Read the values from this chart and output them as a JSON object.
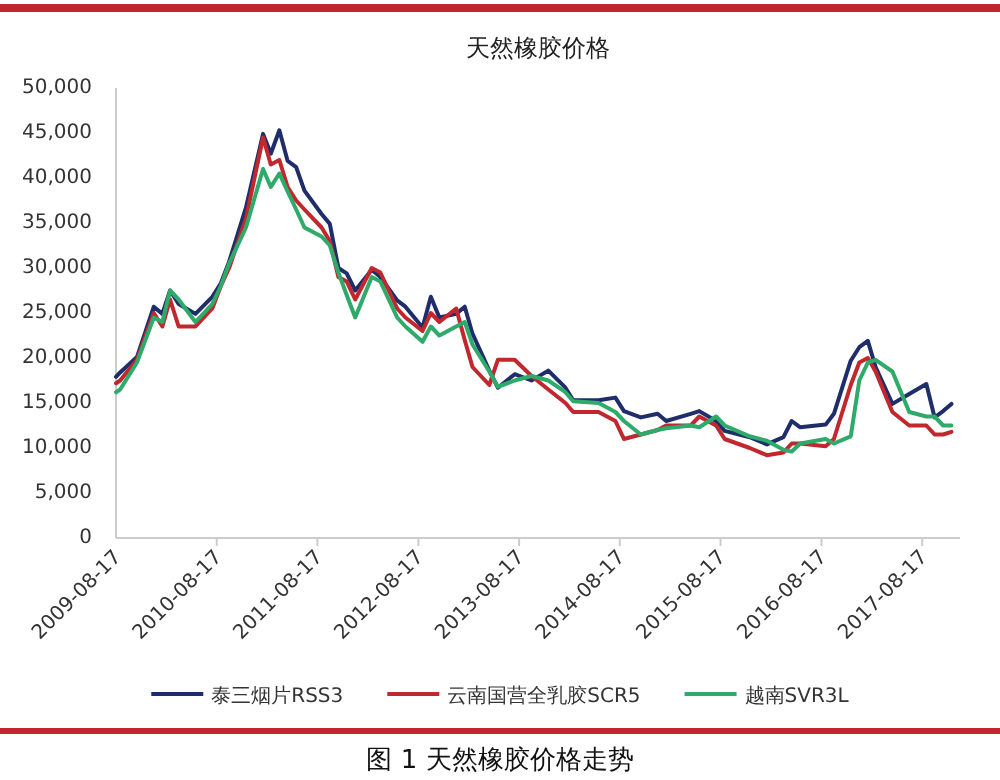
{
  "chart_data": {
    "type": "line",
    "title": "天然橡胶价格",
    "x": [
      "2009-08-17",
      "2009-09",
      "2009-11",
      "2010-01",
      "2010-02",
      "2010-03",
      "2010-04",
      "2010-06",
      "2010-08",
      "2010-09",
      "2010-10",
      "2010-12",
      "2011-02",
      "2011-03",
      "2011-04",
      "2011-05",
      "2011-06",
      "2011-07",
      "2011-09",
      "2011-10",
      "2011-11",
      "2011-12",
      "2012-01",
      "2012-03",
      "2012-04",
      "2012-06",
      "2012-07",
      "2012-09",
      "2012-10",
      "2012-11",
      "2013-01",
      "2013-02",
      "2013-03",
      "2013-05",
      "2013-06",
      "2013-08",
      "2013-10",
      "2013-12",
      "2014-02",
      "2014-03",
      "2014-06",
      "2014-08",
      "2014-09",
      "2014-11",
      "2015-01",
      "2015-02",
      "2015-05",
      "2015-06",
      "2015-08",
      "2015-09",
      "2015-12",
      "2016-02",
      "2016-04",
      "2016-05",
      "2016-06",
      "2016-09",
      "2016-10",
      "2016-12",
      "2017-01",
      "2017-02",
      "2017-03",
      "2017-05",
      "2017-07",
      "2017-09",
      "2017-10",
      "2017-11",
      "2017-12"
    ],
    "series": [
      {
        "name": "泰三烟片RSS3",
        "color": "#1f2d6b",
        "values": [
          17900,
          18400,
          20100,
          25700,
          24900,
          27500,
          26000,
          24900,
          26800,
          28300,
          30700,
          36700,
          44900,
          42700,
          45300,
          41900,
          41200,
          38600,
          36000,
          34900,
          30000,
          29400,
          27500,
          29800,
          29000,
          26400,
          25700,
          23400,
          26800,
          24500,
          24900,
          25700,
          22700,
          18600,
          16700,
          18200,
          17500,
          18600,
          16700,
          15300,
          15300,
          15600,
          14100,
          13400,
          13800,
          13000,
          13800,
          14100,
          13000,
          11900,
          11200,
          10400,
          11200,
          13000,
          12300,
          12600,
          13800,
          19700,
          21200,
          21900,
          19000,
          14900,
          16000,
          17100,
          13400,
          14100,
          14900
        ]
      },
      {
        "name": "云南国营全乳胶SCR5",
        "color": "#c0282d",
        "values": [
          17200,
          17500,
          19800,
          25000,
          23500,
          26500,
          23500,
          23500,
          25500,
          28000,
          30000,
          35500,
          44500,
          41500,
          42000,
          39000,
          37500,
          36500,
          34500,
          33000,
          29000,
          28500,
          26500,
          30000,
          29500,
          25500,
          24500,
          23000,
          25000,
          24000,
          25500,
          22000,
          19000,
          17000,
          19800,
          19800,
          18000,
          16500,
          15000,
          14000,
          14000,
          13000,
          11000,
          11500,
          12000,
          12500,
          12500,
          13500,
          12500,
          11000,
          10000,
          9200,
          9500,
          10500,
          10500,
          10200,
          11000,
          17000,
          19500,
          20000,
          18500,
          14000,
          12500,
          12500,
          11500,
          11500,
          11800
        ]
      },
      {
        "name": "越南SVR3L",
        "color": "#2eaa6a",
        "values": [
          16200,
          16500,
          19500,
          24500,
          24000,
          27500,
          26500,
          24000,
          26000,
          28000,
          30500,
          34500,
          41000,
          39000,
          40500,
          38500,
          36500,
          34500,
          33500,
          32500,
          29500,
          27000,
          24500,
          29000,
          28500,
          24500,
          23500,
          21800,
          23500,
          22500,
          23500,
          24000,
          21500,
          18500,
          16800,
          17500,
          18000,
          17500,
          16200,
          15200,
          15000,
          14000,
          13000,
          11500,
          12000,
          12200,
          12500,
          12300,
          13500,
          12500,
          11300,
          10800,
          9800,
          9600,
          10500,
          11000,
          10500,
          11300,
          17500,
          19500,
          19800,
          18500,
          14000,
          13500,
          13500,
          12500,
          12500
        ]
      }
    ],
    "xlim": [
      "2009-08-17",
      "2018-01-01"
    ],
    "xticks": [
      "2009-08-17",
      "2010-08-17",
      "2011-08-17",
      "2012-08-17",
      "2013-08-17",
      "2014-08-17",
      "2015-08-17",
      "2016-08-17",
      "2017-08-17"
    ],
    "ylim": [
      0,
      50000
    ],
    "yticks": [
      {
        "value": 0,
        "label": "0"
      },
      {
        "value": 5000,
        "label": "5,000"
      },
      {
        "value": 10000,
        "label": "10,000"
      },
      {
        "value": 15000,
        "label": "15,000"
      },
      {
        "value": 20000,
        "label": "20,000"
      },
      {
        "value": 25000,
        "label": "25,000"
      },
      {
        "value": 30000,
        "label": "30,000"
      },
      {
        "value": 35000,
        "label": "35,000"
      },
      {
        "value": 40000,
        "label": "40,000"
      },
      {
        "value": 45000,
        "label": "45,000"
      },
      {
        "value": 50000,
        "label": "50,000"
      }
    ],
    "legend": "bottom",
    "grid": false,
    "marker": "none",
    "line_style": "solid",
    "annotations": [
      "图 1 天然橡胶价格走势"
    ]
  }
}
